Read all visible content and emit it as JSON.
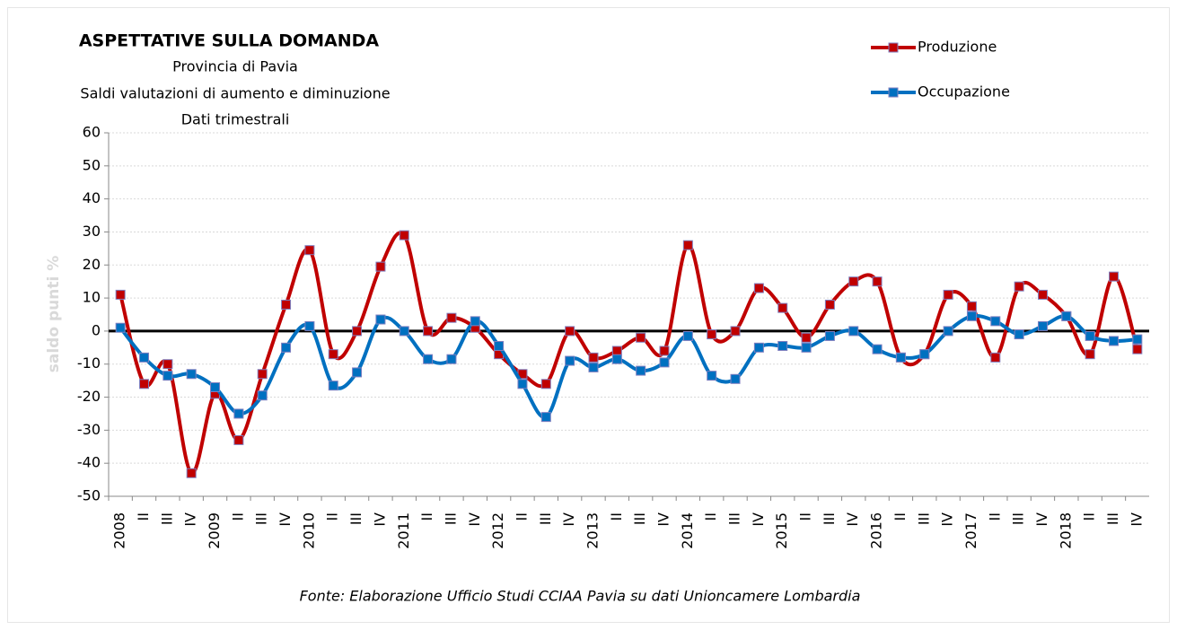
{
  "chart_data": {
    "type": "line",
    "title": "ASPETTATIVE SULLA DOMANDA",
    "subtitle": [
      "Provincia di Pavia",
      "Saldi valutazioni di aumento e diminuzione",
      "Dati trimestrali"
    ],
    "y_label": "saldo punti %",
    "source": "Fonte: Elaborazione Ufficio Studi CCIAA Pavia su dati Unioncamere Lombardia",
    "categories": [
      "2008",
      "II",
      "III",
      "IV",
      "2009",
      "II",
      "III",
      "IV",
      "2010",
      "II",
      "III",
      "IV",
      "2011",
      "II",
      "III",
      "IV",
      "2012",
      "II",
      "III",
      "IV",
      "2013",
      "II",
      "III",
      "IV",
      "2014",
      "II",
      "III",
      "IV",
      "2015",
      "II",
      "III",
      "IV",
      "2016",
      "II",
      "III",
      "IV",
      "2017",
      "II",
      "III",
      "IV",
      "2018",
      "II",
      "III",
      "IV"
    ],
    "series": [
      {
        "name": "Produzione",
        "color": "#c00000",
        "values": [
          11,
          -16,
          -10,
          -43,
          -19,
          -33,
          -13,
          8,
          24.5,
          -7,
          0,
          19.5,
          29,
          0,
          4,
          1,
          -7,
          -13,
          -16,
          0,
          -8,
          -6,
          -2,
          -6,
          26,
          -1,
          0,
          13,
          7,
          -2,
          8,
          15,
          15,
          -8,
          -7,
          11,
          7.5,
          -8,
          13.5,
          11,
          4.5,
          -7,
          16.5,
          -5.5
        ]
      },
      {
        "name": "Occupazione",
        "color": "#0070c0",
        "values": [
          1,
          -8,
          -13.5,
          -13,
          -17,
          -25,
          -19.5,
          -5,
          1.5,
          -16.5,
          -12.5,
          3.5,
          0,
          -8.5,
          -8.5,
          3,
          -4.5,
          -16,
          -26,
          -9,
          -11,
          -8.5,
          -12,
          -9.5,
          -1.5,
          -13.5,
          -14.5,
          -5,
          -4.5,
          -5,
          -1.5,
          0,
          -5.5,
          -8,
          -7,
          0,
          4.5,
          3,
          -1,
          1.5,
          4.5,
          -1.5,
          -3,
          -2.5
        ]
      }
    ],
    "ylim": [
      -50,
      60
    ],
    "yticks": [
      -50,
      -40,
      -30,
      -20,
      -10,
      0,
      10,
      20,
      30,
      40,
      50,
      60
    ],
    "grid": true,
    "smooth": true,
    "legend": "top-right"
  }
}
